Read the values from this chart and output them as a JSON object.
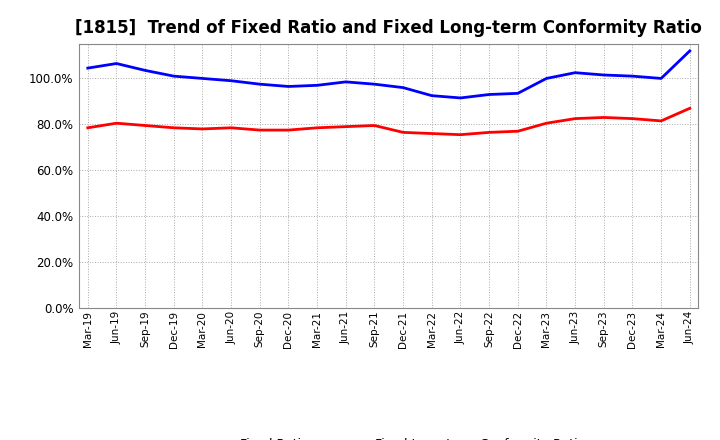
{
  "title": "[1815]  Trend of Fixed Ratio and Fixed Long-term Conformity Ratio",
  "x_labels": [
    "Mar-19",
    "Jun-19",
    "Sep-19",
    "Dec-19",
    "Mar-20",
    "Jun-20",
    "Sep-20",
    "Dec-20",
    "Mar-21",
    "Jun-21",
    "Sep-21",
    "Dec-21",
    "Mar-22",
    "Jun-22",
    "Sep-22",
    "Dec-22",
    "Mar-23",
    "Jun-23",
    "Sep-23",
    "Dec-23",
    "Mar-24",
    "Jun-24"
  ],
  "fixed_ratio": [
    104.5,
    106.5,
    103.5,
    101.0,
    100.0,
    99.0,
    97.5,
    96.5,
    97.0,
    98.5,
    97.5,
    96.0,
    92.5,
    91.5,
    93.0,
    93.5,
    100.0,
    102.5,
    101.5,
    101.0,
    100.0,
    112.0
  ],
  "fixed_lt_ratio": [
    78.5,
    80.5,
    79.5,
    78.5,
    78.0,
    78.5,
    77.5,
    77.5,
    78.5,
    79.0,
    79.5,
    76.5,
    76.0,
    75.5,
    76.5,
    77.0,
    80.5,
    82.5,
    83.0,
    82.5,
    81.5,
    87.0
  ],
  "fixed_ratio_color": "#0000FF",
  "fixed_lt_ratio_color": "#FF0000",
  "ylim": [
    0,
    115
  ],
  "yticks": [
    0,
    20,
    40,
    60,
    80,
    100
  ],
  "ytick_labels": [
    "0.0%",
    "20.0%",
    "40.0%",
    "60.0%",
    "80.0%",
    "100.0%"
  ],
  "bg_color": "#FFFFFF",
  "plot_bg_color": "#FFFFFF",
  "grid_color": "#AAAAAA",
  "legend_fixed_ratio": "Fixed Ratio",
  "legend_fixed_lt_ratio": "Fixed Long-term Conformity Ratio",
  "line_width": 2.0,
  "title_fontsize": 12
}
